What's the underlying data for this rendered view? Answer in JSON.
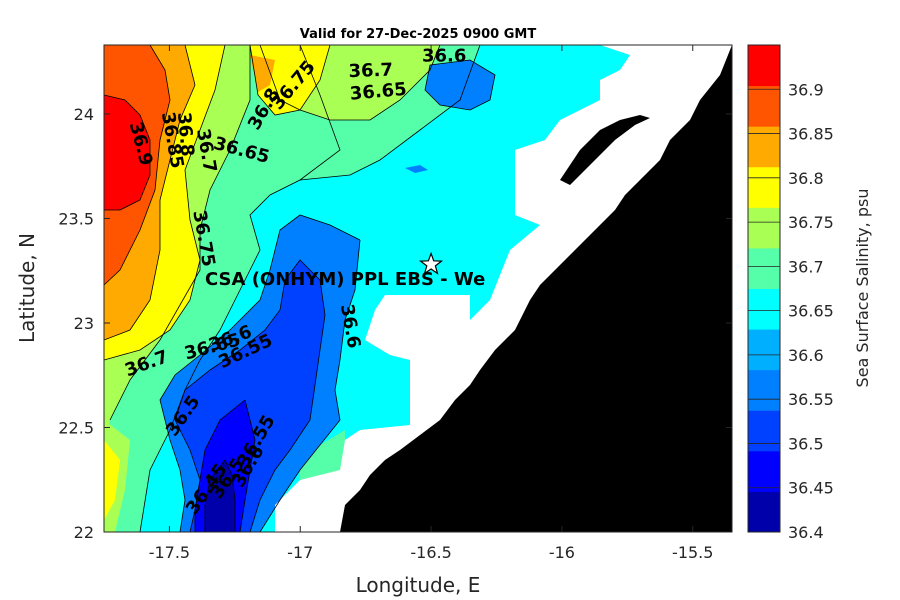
{
  "chart_data": {
    "type": "contour",
    "title": "Valid for 27-Dec-2025 0900 GMT",
    "xlabel": "Longitude, E",
    "ylabel": "Latitude, N",
    "xlim": [
      -17.75,
      -15.35
    ],
    "ylim": [
      22.0,
      24.33
    ],
    "x_ticks": [
      -17.5,
      -17,
      -16.5,
      -16,
      -15.5
    ],
    "x_tick_labels": [
      "-17.5",
      "-17",
      "-16.5",
      "-16",
      "-15.5"
    ],
    "y_ticks": [
      22,
      22.5,
      23,
      23.5,
      24
    ],
    "y_tick_labels": [
      "22",
      "22.5",
      "23",
      "23.5",
      "24"
    ],
    "colorbar": {
      "label": "Sea Surface Salinity, psu",
      "levels": [
        36.4,
        36.45,
        36.5,
        36.55,
        36.6,
        36.65,
        36.7,
        36.75,
        36.8,
        36.85,
        36.9
      ],
      "level_labels": [
        "36.4",
        "36.45",
        "36.5",
        "36.55",
        "36.6",
        "36.65",
        "36.7",
        "36.75",
        "36.8",
        "36.85",
        "36.9"
      ],
      "vmin": 36.4,
      "vmax": 36.95,
      "colors": [
        "#0000aa",
        "#0000ff",
        "#0040ff",
        "#0080ff",
        "#00b0ff",
        "#00ffff",
        "#55ffaa",
        "#aaff55",
        "#ffff00",
        "#ffaa00",
        "#ff5500",
        "#ff0000"
      ]
    },
    "contour_labels": [
      {
        "text": "36.6",
        "lon": -16.45,
        "lat": 24.25
      },
      {
        "text": "36.7",
        "lon": -16.73,
        "lat": 24.18
      },
      {
        "text": "36.65",
        "lon": -16.7,
        "lat": 24.08
      },
      {
        "text": "36.75",
        "lon": -17.01,
        "lat": 24.12
      },
      {
        "text": "36.8",
        "lon": -17.12,
        "lat": 24.01
      },
      {
        "text": "36.65",
        "lon": -17.23,
        "lat": 23.8
      },
      {
        "text": "36.7",
        "lon": -17.38,
        "lat": 23.82
      },
      {
        "text": "36.8",
        "lon": -17.46,
        "lat": 23.9
      },
      {
        "text": "36.85",
        "lon": -17.51,
        "lat": 23.87
      },
      {
        "text": "36.9",
        "lon": -17.63,
        "lat": 23.85
      },
      {
        "text": "36.75",
        "lon": -17.39,
        "lat": 23.4
      },
      {
        "text": "36.6",
        "lon": -16.83,
        "lat": 22.98
      },
      {
        "text": "36.7",
        "lon": -17.58,
        "lat": 22.78
      },
      {
        "text": "36.65",
        "lon": -17.33,
        "lat": 22.86
      },
      {
        "text": "36.6",
        "lon": -17.26,
        "lat": 22.9
      },
      {
        "text": "36.55",
        "lon": -17.2,
        "lat": 22.84
      },
      {
        "text": "36.5",
        "lon": -17.43,
        "lat": 22.54
      },
      {
        "text": "36.55",
        "lon": -17.15,
        "lat": 22.42
      },
      {
        "text": "36.6",
        "lon": -17.18,
        "lat": 22.3
      },
      {
        "text": "36.5",
        "lon": -17.26,
        "lat": 22.24
      },
      {
        "text": "36.45",
        "lon": -17.34,
        "lat": 22.19
      }
    ],
    "site_marker": {
      "label": "CSA (ONHYM) PPL EBS  - We",
      "lon": -16.5,
      "lat": 23.28,
      "symbol": "star"
    },
    "land": "black",
    "no_data": "white"
  }
}
